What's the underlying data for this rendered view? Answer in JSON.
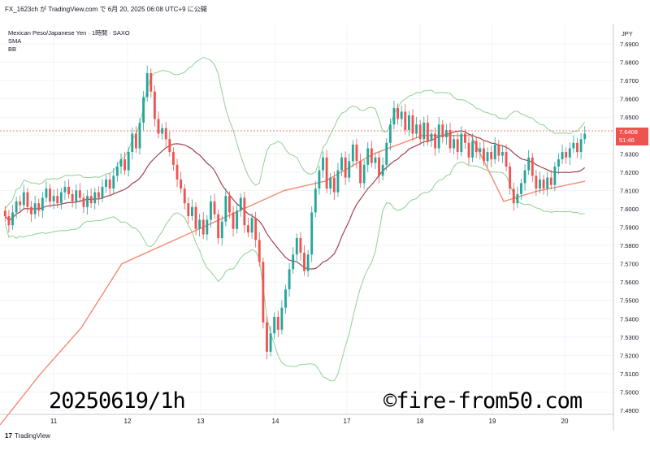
{
  "header": {
    "line1": "FX_1623ch が TradingView.com で 6月 20, 2025 06:08 UTC+9 に公開",
    "symbol": "Mexican Peso/Japanese Yen · 1時間 · SAXO",
    "ind1": "SMA",
    "ind2": "BB"
  },
  "currency": "JPY",
  "last_price": "7.6408",
  "countdown": "51:46",
  "watermark_left": "20250619/1h",
  "watermark_right": "©fire-from50.com",
  "brand": "TradingView",
  "colors": {
    "up": "#26a69a",
    "down": "#ef5350",
    "sma_short": "#a0434f",
    "sma_long": "#f48a6f",
    "bb": "#8fd191"
  },
  "chart_data": {
    "type": "candlestick",
    "x_ticks": [
      "11",
      "12",
      "13",
      "14",
      "17",
      "18",
      "19",
      "20"
    ],
    "y_ticks": [
      "7.4900",
      "7.5000",
      "7.5100",
      "7.5200",
      "7.5300",
      "7.5400",
      "7.5500",
      "7.5600",
      "7.5700",
      "7.5800",
      "7.5900",
      "7.6000",
      "7.6100",
      "7.6200",
      "7.6300",
      "7.6400",
      "7.6500",
      "7.6600",
      "7.6700",
      "7.6800",
      "7.6900"
    ],
    "ylim": [
      7.485,
      7.695
    ],
    "grid": true,
    "closes": [
      7.596,
      7.591,
      7.598,
      7.604,
      7.602,
      7.609,
      7.601,
      7.597,
      7.603,
      7.599,
      7.606,
      7.611,
      7.604,
      7.607,
      7.603,
      7.609,
      7.612,
      7.608,
      7.604,
      7.61,
      7.606,
      7.601,
      7.607,
      7.603,
      7.609,
      7.606,
      7.612,
      7.616,
      7.611,
      7.618,
      7.623,
      7.627,
      7.621,
      7.631,
      7.641,
      7.633,
      7.647,
      7.661,
      7.674,
      7.664,
      7.649,
      7.641,
      7.644,
      7.638,
      7.631,
      7.624,
      7.616,
      7.611,
      7.603,
      7.596,
      7.601,
      7.589,
      7.594,
      7.586,
      7.594,
      7.604,
      7.597,
      7.584,
      7.593,
      7.607,
      7.598,
      7.589,
      7.599,
      7.606,
      7.591,
      7.587,
      7.595,
      7.583,
      7.571,
      7.538,
      7.522,
      7.532,
      7.541,
      7.534,
      7.546,
      7.556,
      7.567,
      7.575,
      7.584,
      7.576,
      7.566,
      7.575,
      7.598,
      7.611,
      7.621,
      7.628,
      7.611,
      7.617,
      7.609,
      7.621,
      7.628,
      7.617,
      7.626,
      7.635,
      7.626,
      7.614,
      7.624,
      7.633,
      7.625,
      7.628,
      7.618,
      7.624,
      7.636,
      7.646,
      7.655,
      7.649,
      7.653,
      7.643,
      7.651,
      7.641,
      7.646,
      7.638,
      7.647,
      7.637,
      7.641,
      7.633,
      7.646,
      7.639,
      7.643,
      7.633,
      7.638,
      7.631,
      7.641,
      7.636,
      7.628,
      7.637,
      7.631,
      7.633,
      7.626,
      7.631,
      7.627,
      7.635,
      7.629,
      7.631,
      7.623,
      7.611,
      7.603,
      7.608,
      7.614,
      7.621,
      7.628,
      7.618,
      7.611,
      7.616,
      7.611,
      7.617,
      7.613,
      7.623,
      7.627,
      7.631,
      7.628,
      7.633,
      7.636,
      7.631,
      7.638,
      7.641
    ],
    "sma_long_approx": [
      [
        0,
        7.482
      ],
      [
        50,
        7.51
      ],
      [
        100,
        7.535
      ],
      [
        150,
        7.57
      ],
      [
        200,
        7.58
      ],
      [
        250,
        7.59
      ],
      [
        300,
        7.6
      ],
      [
        350,
        7.61
      ],
      [
        400,
        7.615
      ],
      [
        460,
        7.63
      ],
      [
        520,
        7.64
      ],
      [
        580,
        7.64
      ],
      [
        620,
        7.604
      ],
      [
        660,
        7.6095
      ],
      [
        720,
        7.615
      ]
    ]
  }
}
